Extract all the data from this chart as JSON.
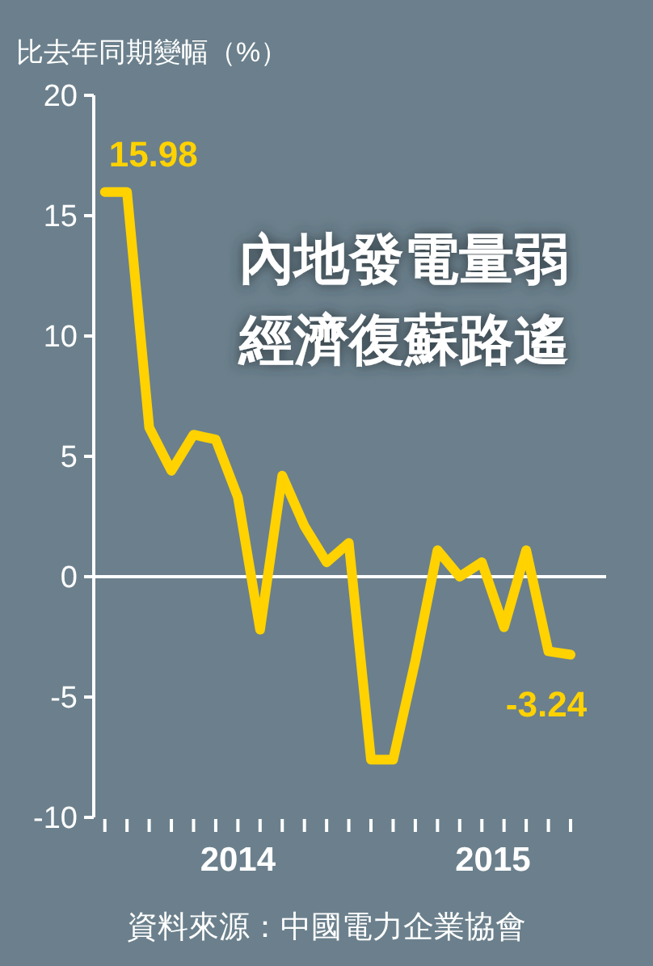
{
  "chart_data": {
    "type": "line",
    "title": "內地發電量弱",
    "subtitle": "經濟復蘇路遙",
    "ylabel": "比去年同期變幅（%）",
    "annotations": [
      "2014",
      "2015",
      "資料來源：中國電力企業協會"
    ],
    "categories": [
      null,
      null,
      null,
      null,
      null,
      null,
      null,
      null,
      null,
      null,
      null,
      null,
      null,
      null,
      null,
      null,
      null,
      null,
      null,
      null,
      null,
      null
    ],
    "series": [
      {
        "color": "#ffd200",
        "values": [
          15.98,
          15.98,
          6.2,
          4.4,
          5.9,
          5.7,
          3.3,
          -2.2,
          4.2,
          2.1,
          0.6,
          1.4,
          -7.6,
          -7.6,
          -3.5,
          1.1,
          0,
          0.6,
          -2.1,
          1.1,
          -3.1,
          -3.24
        ],
        "value_labels": [
          "15.98",
          null,
          null,
          null,
          null,
          null,
          null,
          null,
          null,
          null,
          null,
          null,
          null,
          null,
          null,
          null,
          null,
          null,
          null,
          null,
          null,
          "-3.24"
        ]
      }
    ],
    "ylim": [
      -10,
      20
    ],
    "yticks": [
      -10,
      -5,
      0,
      5,
      10,
      15,
      20
    ],
    "ref_lines": [
      {
        "axis": "y",
        "value": 0,
        "color": "#ffffff"
      }
    ],
    "grid": false,
    "marker": "none",
    "line_style": "solid"
  }
}
